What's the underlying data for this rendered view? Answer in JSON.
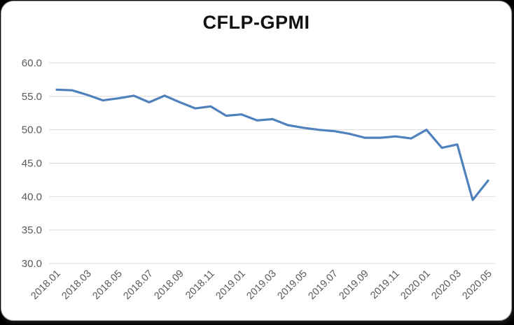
{
  "chart_data": {
    "type": "line",
    "title": "CFLP-GPMI",
    "xlabel": "",
    "ylabel": "",
    "legend": "none",
    "grid": "horizontal",
    "ylim": [
      30,
      60
    ],
    "ytick_labels": [
      "60.0",
      "55.0",
      "50.0",
      "45.0",
      "40.0",
      "35.0",
      "30.0"
    ],
    "xtick_labels": [
      "2018.01",
      "2018.03",
      "2018.05",
      "2018.07",
      "2018.09",
      "2018.11",
      "2019.01",
      "2019.03",
      "2019.05",
      "2019.07",
      "2019.09",
      "2019.11",
      "2020.01",
      "2020.03",
      "2020.05"
    ],
    "categories": [
      "2018.01",
      "2018.02",
      "2018.03",
      "2018.04",
      "2018.05",
      "2018.06",
      "2018.07",
      "2018.08",
      "2018.09",
      "2018.10",
      "2018.11",
      "2018.12",
      "2019.01",
      "2019.02",
      "2019.03",
      "2019.04",
      "2019.05",
      "2019.06",
      "2019.07",
      "2019.08",
      "2019.09",
      "2019.10",
      "2019.11",
      "2019.12",
      "2020.01",
      "2020.02",
      "2020.03",
      "2020.04",
      "2020.05"
    ],
    "series": [
      {
        "name": "CFLP-GPMI",
        "values": [
          56.0,
          55.9,
          55.2,
          54.4,
          54.7,
          55.1,
          54.1,
          55.1,
          54.1,
          53.2,
          53.5,
          52.1,
          52.3,
          51.4,
          51.6,
          50.7,
          50.3,
          50.0,
          49.8,
          49.4,
          48.8,
          48.8,
          49.0,
          48.7,
          50.0,
          47.3,
          47.8,
          39.5,
          42.4
        ]
      }
    ],
    "colors": {
      "line": "#4F81BD",
      "gridline": "#D9D9D9",
      "tick_text": "#595959",
      "title_text": "#111111",
      "plot_background": "#FFFFFF",
      "frame": "#000000"
    }
  }
}
